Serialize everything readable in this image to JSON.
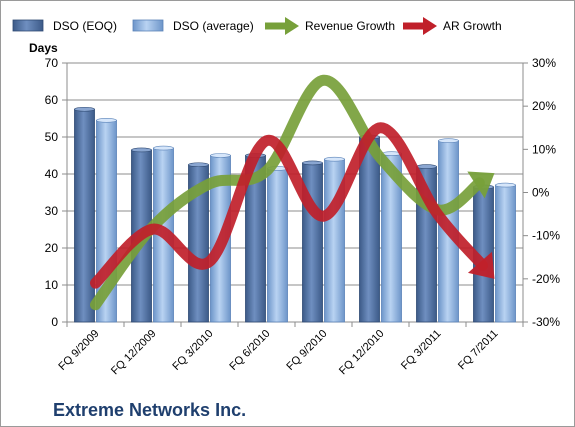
{
  "chart_data": {
    "type": "bar",
    "title": "",
    "company": "Extreme Networks Inc.",
    "y_left_label": "Days",
    "y_left_lim": [
      0,
      70
    ],
    "y_left_ticks": [
      "0",
      "10",
      "20",
      "30",
      "40",
      "50",
      "60",
      "70"
    ],
    "y_right_lim": [
      -30,
      30
    ],
    "y_right_ticks": [
      "-30%",
      "-20%",
      "-10%",
      "0%",
      "10%",
      "20%",
      "30%"
    ],
    "categories": [
      "FQ 9/2009",
      "FQ 12/2009",
      "FQ 3/2010",
      "FQ 6/2010",
      "FQ 9/2010",
      "FQ 12/2010",
      "FQ 3/2011",
      "FQ 7/2011"
    ],
    "series": [
      {
        "name": "DSO (EOQ)",
        "type": "bar",
        "axis": "left",
        "color": "#4f6f9f",
        "values": [
          57.5,
          46.5,
          42.5,
          45,
          43,
          50,
          42,
          36.5
        ]
      },
      {
        "name": "DSO (average)",
        "type": "bar",
        "axis": "left",
        "color": "#8fb4e3",
        "values": [
          54.5,
          47,
          45,
          41.5,
          44,
          45.5,
          49,
          37
        ]
      },
      {
        "name": "Revenue Growth",
        "type": "line",
        "axis": "right",
        "color": "#77a03a",
        "values": [
          -26,
          -8,
          2,
          5,
          26,
          8,
          -4,
          4.5
        ]
      },
      {
        "name": "AR Growth",
        "type": "line",
        "axis": "right",
        "color": "#c0202a",
        "values": [
          -21,
          -8.5,
          -16,
          12,
          -5.5,
          15,
          -5,
          -20
        ]
      }
    ],
    "grid": true,
    "legend_position": "top"
  }
}
